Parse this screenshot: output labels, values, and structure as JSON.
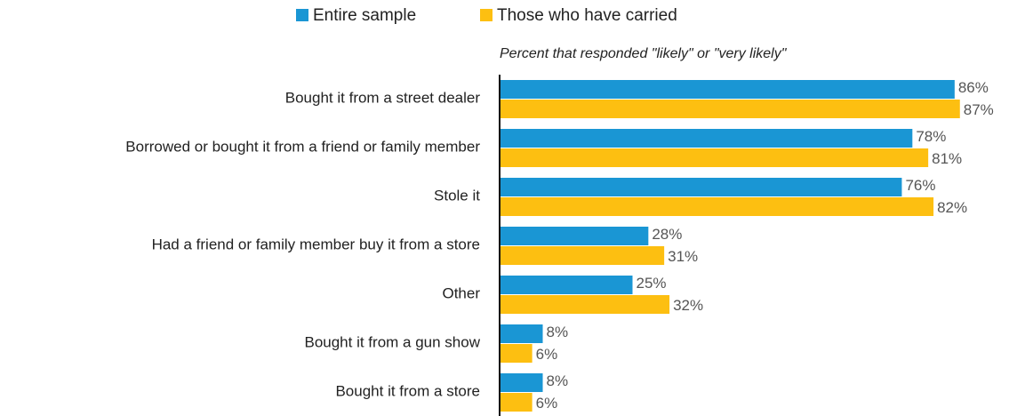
{
  "chart_data": {
    "type": "bar",
    "orientation": "horizontal",
    "subtitle": "Percent that responded \"likely\" or \"very likely\"",
    "categories": [
      "Bought it from a street dealer",
      "Borrowed or bought it from a friend or family member",
      "Stole it",
      "Had a friend or family member buy it from a store",
      "Other",
      "Bought it from a gun show",
      "Bought it from a store"
    ],
    "series": [
      {
        "name": "Entire sample",
        "color": "#1a96d4",
        "values": [
          86,
          78,
          76,
          28,
          25,
          8,
          8
        ],
        "value_labels": [
          "86%",
          "78%",
          "76%",
          "28%",
          "25%",
          "8%",
          "8%"
        ]
      },
      {
        "name": "Those who have carried",
        "color": "#fdbf11",
        "values": [
          87,
          81,
          82,
          31,
          32,
          6,
          6
        ],
        "value_labels": [
          "87%",
          "81%",
          "82%",
          "31%",
          "32%",
          "6%",
          "6%"
        ]
      }
    ],
    "legend": "top"
  }
}
